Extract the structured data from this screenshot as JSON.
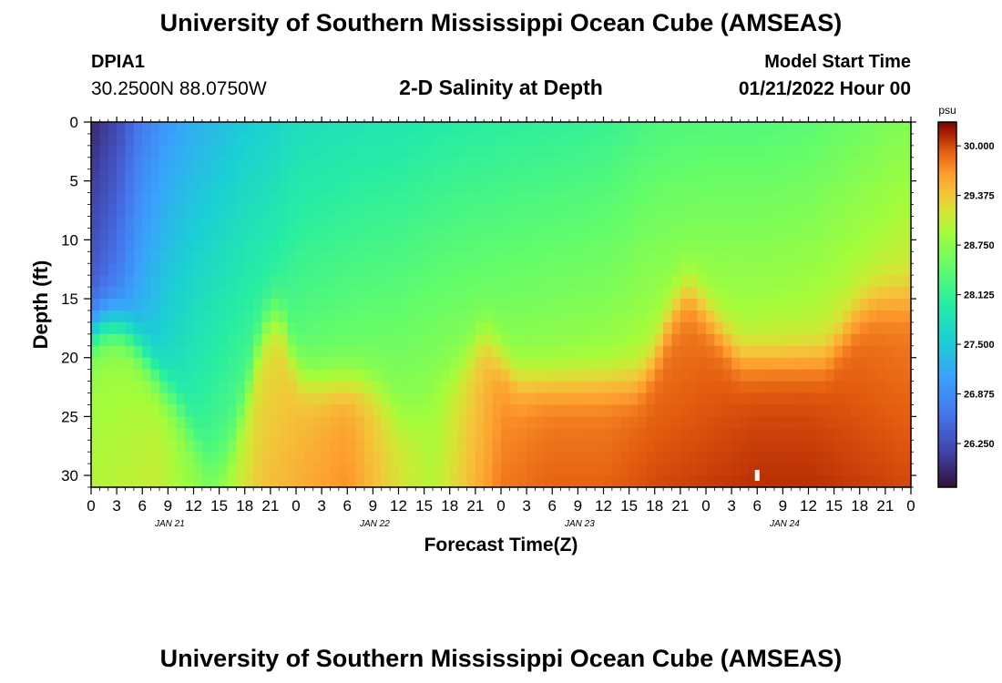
{
  "header": {
    "title": "University of Southern Mississippi Ocean Cube (AMSEAS)",
    "station": "DPIA1",
    "coords": "30.2500N  88.0750W",
    "subtitle": "2-D Salinity at Depth",
    "model_start_label": "Model Start Time",
    "model_start_value": "01/21/2022 Hour 00"
  },
  "footer": {
    "title": "University of Southern Mississippi Ocean Cube (AMSEAS)"
  },
  "chart_data": {
    "type": "heatmap",
    "title": "2-D Salinity at Depth",
    "xlabel": "Forecast Time(Z)",
    "ylabel": "Depth (ft)",
    "x_ticks": [
      "0",
      "3",
      "6",
      "9",
      "12",
      "15",
      "18",
      "21",
      "0",
      "3",
      "6",
      "9",
      "12",
      "15",
      "18",
      "21",
      "0",
      "3",
      "6",
      "9",
      "12",
      "15",
      "18",
      "21",
      "0",
      "3",
      "6",
      "9",
      "12",
      "15",
      "18",
      "21",
      "0"
    ],
    "x_tick_hours": [
      0,
      3,
      6,
      9,
      12,
      15,
      18,
      21,
      24,
      27,
      30,
      33,
      36,
      39,
      42,
      45,
      48,
      51,
      54,
      57,
      60,
      63,
      66,
      69,
      72,
      75,
      78,
      81,
      84,
      87,
      90,
      93,
      96
    ],
    "date_labels": [
      {
        "label": "JAN 21",
        "hour": 9
      },
      {
        "label": "JAN 22",
        "hour": 33
      },
      {
        "label": "JAN 23",
        "hour": 57
      },
      {
        "label": "JAN 24",
        "hour": 81
      }
    ],
    "y_ticks": [
      "0",
      "5",
      "10",
      "15",
      "20",
      "25",
      "30"
    ],
    "y_tick_values": [
      0,
      5,
      10,
      15,
      20,
      25,
      30
    ],
    "ylim": [
      0,
      31
    ],
    "xlim": [
      0,
      96
    ],
    "colorbar": {
      "unit": "psu",
      "ticks": [
        "30.000",
        "29.375",
        "28.750",
        "28.125",
        "27.500",
        "26.875",
        "26.250"
      ],
      "tick_values": [
        30.0,
        29.375,
        28.75,
        28.125,
        27.5,
        26.875,
        26.25
      ],
      "min": 25.7,
      "max": 30.3
    },
    "surface_salinity_profile": {
      "hours": [
        0,
        3,
        6,
        9,
        12,
        15,
        18,
        21,
        24,
        30,
        36,
        42,
        48,
        54,
        60,
        66,
        72,
        78,
        84,
        90,
        96
      ],
      "values": [
        25.9,
        26.2,
        26.7,
        27.0,
        27.2,
        27.35,
        27.5,
        27.6,
        27.75,
        27.85,
        27.9,
        28.0,
        28.05,
        28.1,
        28.15,
        28.3,
        28.35,
        28.35,
        28.4,
        28.55,
        28.7
      ]
    },
    "halocline_depth": {
      "hours": [
        0,
        2,
        4,
        6,
        8,
        10,
        12,
        14,
        16,
        18,
        20,
        22,
        24,
        26,
        28,
        30,
        32,
        34,
        36,
        38,
        40,
        42,
        44,
        46,
        48,
        50,
        52,
        54,
        56,
        58,
        60,
        62,
        64,
        66,
        68,
        70,
        72,
        74,
        76,
        78,
        80,
        82,
        84,
        86,
        88,
        90,
        92,
        94,
        96
      ],
      "values": [
        18,
        17,
        17.5,
        19.5,
        22,
        24,
        27,
        30,
        29,
        24,
        18,
        16,
        21,
        22,
        22,
        22,
        22,
        23,
        25,
        26,
        23,
        22,
        20,
        18,
        20,
        22,
        22,
        22,
        22,
        22,
        22,
        22,
        22,
        20,
        16,
        14,
        16,
        18,
        20,
        20,
        20,
        20,
        20,
        20,
        18,
        16,
        15,
        15,
        15
      ]
    },
    "bottom_salinity": {
      "hours": [
        0,
        8,
        12,
        14,
        20,
        30,
        36,
        40,
        48,
        54,
        60,
        66,
        72,
        78,
        84,
        90,
        96
      ],
      "values": [
        29.0,
        29.1,
        28.8,
        28.7,
        29.4,
        29.7,
        29.2,
        29.0,
        29.8,
        29.9,
        29.9,
        30.0,
        30.05,
        30.1,
        30.1,
        30.05,
        30.0
      ]
    },
    "marker": {
      "hour": 78,
      "depth": 30
    }
  }
}
